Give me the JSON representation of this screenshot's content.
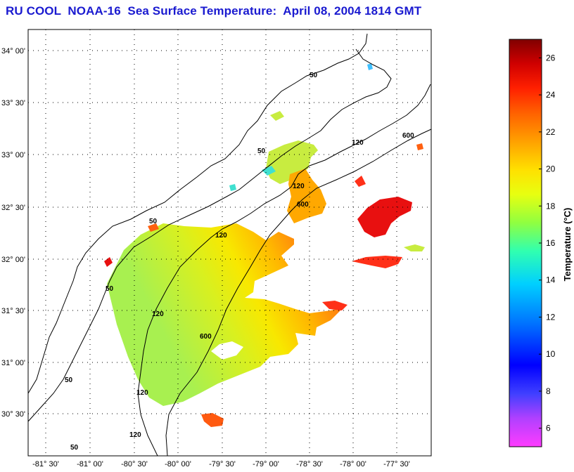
{
  "title": "RU COOL  NOAA-16  Sea Surface Temperature:  April 08, 2004 1814 GMT",
  "lat_labels": [
    "34° 00'",
    "33° 30'",
    "33° 00'",
    "32° 30'",
    "32° 00'",
    "31° 30'",
    "31° 00'",
    "30° 30'"
  ],
  "lon_labels": [
    "-81° 30'",
    "-81° 00'",
    "-80° 30'",
    "-80° 00'",
    "-79° 30'",
    "-79° 00'",
    "-78° 30'",
    "-78° 00'",
    "-77° 30'"
  ],
  "contour_labels": [
    "50",
    "50",
    "50",
    "50",
    "50",
    "50",
    "120",
    "120",
    "120",
    "120",
    "120",
    "120",
    "600",
    "600",
    "600"
  ],
  "colorbar": {
    "label": "Temperature (°C)",
    "ticks": [
      "26",
      "24",
      "22",
      "20",
      "18",
      "16",
      "14",
      "12",
      "10",
      "8",
      "6"
    ],
    "min": 5,
    "max": 27,
    "colors": [
      "#ff40ff",
      "#c040ff",
      "#6060ff",
      "#0000ff",
      "#0060ff",
      "#00b0ff",
      "#00f0e0",
      "#40ff80",
      "#a0ff40",
      "#ffff00",
      "#ffc000",
      "#ff8000",
      "#ff3000",
      "#e00000",
      "#900000"
    ]
  }
}
